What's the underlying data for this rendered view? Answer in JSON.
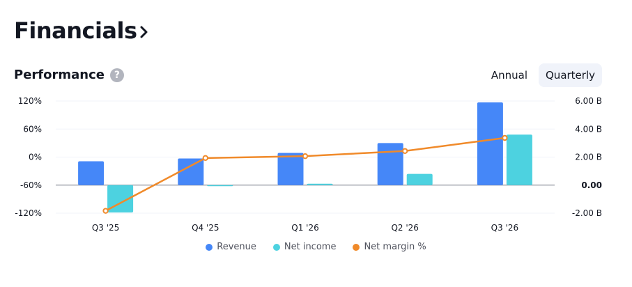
{
  "header": {
    "title": "Financials"
  },
  "section": {
    "title": "Performance",
    "help_glyph": "?"
  },
  "period_toggle": {
    "annual_label": "Annual",
    "quarterly_label": "Quarterly",
    "selected": "Quarterly"
  },
  "colors": {
    "revenue": "#4587f8",
    "net_income": "#4dd2e0",
    "net_margin": "#f08a2a"
  },
  "chart_data": {
    "type": "bar",
    "categories": [
      "Q3 '25",
      "Q4 '25",
      "Q1 '26",
      "Q2 '26",
      "Q3 '26"
    ],
    "series": [
      {
        "name": "Revenue",
        "axis": "right",
        "unit": "B",
        "values": [
          1.7,
          1.9,
          2.3,
          3.0,
          5.9
        ]
      },
      {
        "name": "Net income",
        "axis": "right",
        "unit": "B",
        "values": [
          -1.95,
          -0.05,
          0.1,
          0.8,
          3.6
        ]
      },
      {
        "name": "Net margin %",
        "type": "line",
        "axis": "left",
        "unit": "%",
        "values": [
          -115,
          -2,
          2,
          13,
          41
        ]
      }
    ],
    "left_axis": {
      "ticks": [
        "120%",
        "60%",
        "0%",
        "-60%",
        "-120%"
      ],
      "ylim": [
        -120,
        120
      ]
    },
    "right_axis": {
      "ticks": [
        "6.00 B",
        "4.00 B",
        "2.00 B",
        "0.00",
        "-2.00 B"
      ],
      "ylim": [
        -2,
        6
      ]
    },
    "legend": {
      "placement": "bottom",
      "items": [
        "Revenue",
        "Net income",
        "Net margin %"
      ]
    },
    "grid": true
  }
}
